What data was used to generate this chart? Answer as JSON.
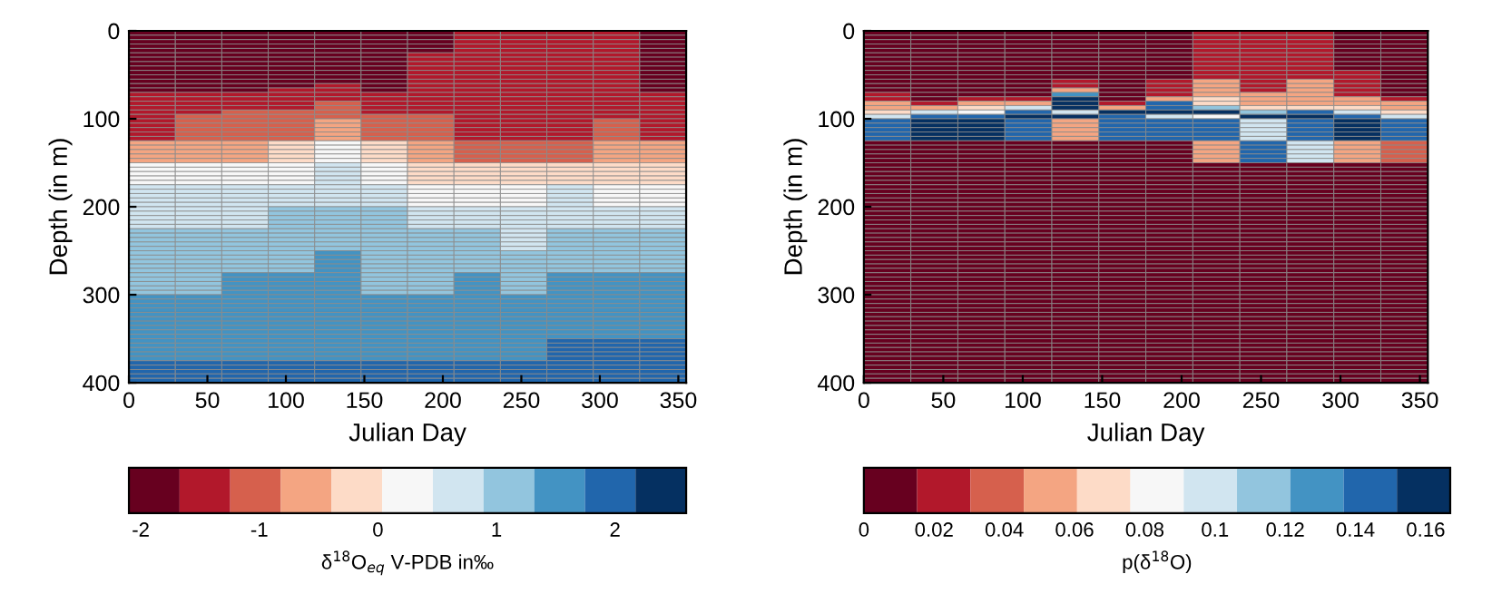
{
  "chart_data": [
    {
      "type": "heatmap",
      "xlabel": "Julian Day",
      "ylabel": "Depth (in m)",
      "clabel": "δ$^{18}$O$_{eq}$ V-PDB in‰",
      "xlim": [
        0,
        355
      ],
      "ylim": [
        400,
        0
      ],
      "xticks": [
        0,
        50,
        100,
        150,
        200,
        250,
        300,
        350
      ],
      "yticks": [
        0,
        100,
        200,
        300,
        400
      ],
      "clim": [
        -2.1,
        2.6
      ],
      "cticks": [
        -2,
        -1,
        0,
        1,
        2
      ],
      "colors": [
        "#67001f",
        "#b2182b",
        "#d6604d",
        "#f4a582",
        "#fddbc7",
        "#f7f7f7",
        "#d1e5f0",
        "#92c5de",
        "#4393c3",
        "#2166ac",
        "#053061"
      ],
      "cells": [
        [
          -1.89,
          -1.89,
          -1.89,
          -1.89,
          -1.89,
          -1.89,
          -1.89,
          -1.46,
          -1.46,
          -1.46,
          -1.46,
          -1.89
        ],
        [
          -1.89,
          -1.89,
          -1.89,
          -1.89,
          -1.89,
          -1.89,
          -1.89,
          -1.46,
          -1.46,
          -1.46,
          -1.46,
          -1.89
        ],
        [
          -1.89,
          -1.89,
          -1.89,
          -1.89,
          -1.89,
          -1.89,
          -1.89,
          -1.46,
          -1.46,
          -1.46,
          -1.46,
          -1.89
        ],
        [
          -1.89,
          -1.89,
          -1.89,
          -1.89,
          -1.89,
          -1.89,
          -1.89,
          -1.46,
          -1.46,
          -1.46,
          -1.46,
          -1.89
        ],
        [
          -1.89,
          -1.89,
          -1.89,
          -1.89,
          -1.89,
          -1.89,
          -1.89,
          -1.46,
          -1.46,
          -1.46,
          -1.46,
          -1.89
        ],
        [
          -1.89,
          -1.89,
          -1.89,
          -1.89,
          -1.89,
          -1.89,
          -1.46,
          -1.46,
          -1.46,
          -1.46,
          -1.46,
          -1.89
        ],
        [
          -1.89,
          -1.89,
          -1.89,
          -1.89,
          -1.89,
          -1.89,
          -1.46,
          -1.46,
          -1.46,
          -1.46,
          -1.46,
          -1.89
        ],
        [
          -1.89,
          -1.89,
          -1.89,
          -1.89,
          -1.89,
          -1.89,
          -1.46,
          -1.46,
          -1.46,
          -1.46,
          -1.46,
          -1.89
        ],
        [
          -1.89,
          -1.89,
          -1.89,
          -1.89,
          -1.89,
          -1.89,
          -1.46,
          -1.46,
          -1.46,
          -1.46,
          -1.46,
          -1.89
        ],
        [
          -1.89,
          -1.89,
          -1.89,
          -1.89,
          -1.89,
          -1.89,
          -1.46,
          -1.46,
          -1.46,
          -1.46,
          -1.46,
          -1.89
        ],
        [
          -1.89,
          -1.89,
          -1.89,
          -1.89,
          -1.89,
          -1.89,
          -1.46,
          -1.46,
          -1.46,
          -1.46,
          -1.46,
          -1.89
        ],
        [
          -1.89,
          -1.89,
          -1.89,
          -1.89,
          -1.89,
          -1.89,
          -1.46,
          -1.46,
          -1.46,
          -1.46,
          -1.46,
          -1.89
        ],
        [
          -1.89,
          -1.89,
          -1.89,
          -1.89,
          -1.46,
          -1.89,
          -1.46,
          -1.46,
          -1.46,
          -1.46,
          -1.46,
          -1.89
        ],
        [
          -1.89,
          -1.89,
          -1.89,
          -1.46,
          -1.46,
          -1.89,
          -1.46,
          -1.46,
          -1.46,
          -1.46,
          -1.46,
          -1.89
        ],
        [
          -1.46,
          -1.46,
          -1.46,
          -1.46,
          -1.46,
          -1.46,
          -1.46,
          -1.46,
          -1.46,
          -1.46,
          -1.46,
          -1.46
        ],
        [
          -1.46,
          -1.46,
          -1.46,
          -1.46,
          -1.46,
          -1.46,
          -1.46,
          -1.46,
          -1.46,
          -1.46,
          -1.46,
          -1.46
        ],
        [
          -1.46,
          -1.46,
          -1.46,
          -1.46,
          -1.03,
          -1.46,
          -1.46,
          -1.46,
          -1.46,
          -1.46,
          -1.46,
          -1.46
        ],
        [
          -1.46,
          -1.46,
          -1.46,
          -1.46,
          -1.03,
          -1.46,
          -1.46,
          -1.46,
          -1.46,
          -1.46,
          -1.46,
          -1.46
        ],
        [
          -1.46,
          -1.46,
          -1.03,
          -1.03,
          -1.03,
          -1.46,
          -1.46,
          -1.46,
          -1.46,
          -1.46,
          -1.46,
          -1.46
        ],
        [
          -1.46,
          -1.03,
          -1.03,
          -1.03,
          -1.03,
          -1.03,
          -1.03,
          -1.46,
          -1.46,
          -1.46,
          -1.46,
          -1.46
        ],
        [
          -1.46,
          -1.03,
          -1.03,
          -1.03,
          -0.6,
          -1.03,
          -1.03,
          -1.46,
          -1.46,
          -1.46,
          -1.03,
          -1.46
        ],
        [
          -1.46,
          -1.03,
          -1.03,
          -1.03,
          -0.6,
          -1.03,
          -1.03,
          -1.46,
          -1.46,
          -1.46,
          -1.03,
          -1.46
        ],
        [
          -1.46,
          -1.03,
          -1.03,
          -1.03,
          -0.6,
          -1.03,
          -1.03,
          -1.46,
          -1.46,
          -1.46,
          -1.03,
          -1.46
        ],
        [
          -1.46,
          -1.03,
          -1.03,
          -1.03,
          -0.6,
          -1.03,
          -1.03,
          -1.46,
          -1.46,
          -1.46,
          -1.03,
          -1.46
        ],
        [
          -1.46,
          -1.03,
          -1.03,
          -1.03,
          -0.6,
          -1.03,
          -1.03,
          -1.46,
          -1.46,
          -1.46,
          -1.03,
          -1.46
        ],
        [
          -0.6,
          -0.6,
          -0.6,
          -0.18,
          0.25,
          -0.18,
          -0.6,
          -1.03,
          -1.03,
          -1.03,
          -0.6,
          -0.6
        ],
        [
          -0.6,
          -0.6,
          -0.6,
          -0.18,
          0.25,
          -0.18,
          -0.6,
          -1.03,
          -1.03,
          -1.03,
          -0.6,
          -0.6
        ],
        [
          -0.6,
          -0.6,
          -0.6,
          -0.18,
          0.25,
          -0.18,
          -0.6,
          -1.03,
          -1.03,
          -1.03,
          -0.6,
          -0.6
        ],
        [
          -0.6,
          -0.6,
          -0.6,
          -0.18,
          0.25,
          -0.18,
          -0.6,
          -1.03,
          -1.03,
          -1.03,
          -0.6,
          -0.6
        ],
        [
          -0.6,
          -0.6,
          -0.6,
          -0.18,
          0.25,
          -0.18,
          -0.6,
          -1.03,
          -1.03,
          -1.03,
          -0.6,
          -0.6
        ],
        [
          0.25,
          0.25,
          0.25,
          0.25,
          0.68,
          0.25,
          -0.18,
          -0.18,
          -0.18,
          -0.18,
          -0.18,
          -0.18
        ],
        [
          0.25,
          0.25,
          0.25,
          0.25,
          0.68,
          0.25,
          -0.18,
          -0.18,
          -0.18,
          -0.18,
          -0.18,
          -0.18
        ],
        [
          0.25,
          0.25,
          0.25,
          0.25,
          0.68,
          0.25,
          -0.18,
          -0.18,
          -0.18,
          -0.18,
          -0.18,
          -0.18
        ],
        [
          0.25,
          0.25,
          0.25,
          0.25,
          0.68,
          0.25,
          -0.18,
          -0.18,
          -0.18,
          -0.18,
          -0.18,
          -0.18
        ],
        [
          0.25,
          0.25,
          0.25,
          0.25,
          0.68,
          0.25,
          -0.18,
          -0.18,
          -0.18,
          -0.18,
          -0.18,
          -0.18
        ],
        [
          0.68,
          0.68,
          0.68,
          0.68,
          0.68,
          0.68,
          0.25,
          0.25,
          0.25,
          0.68,
          0.25,
          0.25
        ],
        [
          0.68,
          0.68,
          0.68,
          0.68,
          0.68,
          0.68,
          0.25,
          0.25,
          0.25,
          0.68,
          0.25,
          0.25
        ],
        [
          0.68,
          0.68,
          0.68,
          0.68,
          0.68,
          0.68,
          0.25,
          0.25,
          0.25,
          0.68,
          0.25,
          0.25
        ],
        [
          0.68,
          0.68,
          0.68,
          0.68,
          0.68,
          0.68,
          0.25,
          0.25,
          0.25,
          0.68,
          0.25,
          0.25
        ],
        [
          0.68,
          0.68,
          0.68,
          0.68,
          0.68,
          0.68,
          0.25,
          0.25,
          0.25,
          0.68,
          0.25,
          0.25
        ],
        [
          0.68,
          0.68,
          0.68,
          1.1,
          1.1,
          1.1,
          0.68,
          0.68,
          0.68,
          0.68,
          0.68,
          0.68
        ],
        [
          0.68,
          0.68,
          0.68,
          1.1,
          1.1,
          1.1,
          0.68,
          0.68,
          0.68,
          0.68,
          0.68,
          0.68
        ],
        [
          0.68,
          0.68,
          0.68,
          1.1,
          1.1,
          1.1,
          0.68,
          0.68,
          0.68,
          0.68,
          0.68,
          0.68
        ],
        [
          0.68,
          0.68,
          0.68,
          1.1,
          1.1,
          1.1,
          0.68,
          0.68,
          0.68,
          0.68,
          0.68,
          0.68
        ],
        [
          0.68,
          0.68,
          0.68,
          1.1,
          1.1,
          1.1,
          0.68,
          0.68,
          0.68,
          0.68,
          0.68,
          0.68
        ],
        [
          1.1,
          1.1,
          1.1,
          1.1,
          1.1,
          1.1,
          1.1,
          1.1,
          0.68,
          1.1,
          1.1,
          1.1
        ],
        [
          1.1,
          1.1,
          1.1,
          1.1,
          1.1,
          1.1,
          1.1,
          1.1,
          0.68,
          1.1,
          1.1,
          1.1
        ],
        [
          1.1,
          1.1,
          1.1,
          1.1,
          1.1,
          1.1,
          1.1,
          1.1,
          0.68,
          1.1,
          1.1,
          1.1
        ],
        [
          1.1,
          1.1,
          1.1,
          1.1,
          1.1,
          1.1,
          1.1,
          1.1,
          0.68,
          1.1,
          1.1,
          1.1
        ],
        [
          1.1,
          1.1,
          1.1,
          1.1,
          1.1,
          1.1,
          1.1,
          1.1,
          0.68,
          1.1,
          1.1,
          1.1
        ],
        [
          1.1,
          1.1,
          1.1,
          1.1,
          1.53,
          1.1,
          1.1,
          1.1,
          1.1,
          1.1,
          1.1,
          1.1
        ],
        [
          1.1,
          1.1,
          1.1,
          1.1,
          1.53,
          1.1,
          1.1,
          1.1,
          1.1,
          1.1,
          1.1,
          1.1
        ],
        [
          1.1,
          1.1,
          1.1,
          1.1,
          1.53,
          1.1,
          1.1,
          1.1,
          1.1,
          1.1,
          1.1,
          1.1
        ],
        [
          1.1,
          1.1,
          1.1,
          1.1,
          1.53,
          1.1,
          1.1,
          1.1,
          1.1,
          1.1,
          1.1,
          1.1
        ],
        [
          1.1,
          1.1,
          1.1,
          1.1,
          1.53,
          1.1,
          1.1,
          1.1,
          1.1,
          1.1,
          1.1,
          1.1
        ],
        [
          1.1,
          1.1,
          1.53,
          1.53,
          1.53,
          1.1,
          1.1,
          1.53,
          1.1,
          1.53,
          1.53,
          1.53
        ],
        [
          1.1,
          1.1,
          1.53,
          1.53,
          1.53,
          1.1,
          1.1,
          1.53,
          1.1,
          1.53,
          1.53,
          1.53
        ],
        [
          1.1,
          1.1,
          1.53,
          1.53,
          1.53,
          1.1,
          1.1,
          1.53,
          1.1,
          1.53,
          1.53,
          1.53
        ],
        [
          1.1,
          1.1,
          1.53,
          1.53,
          1.53,
          1.1,
          1.1,
          1.53,
          1.1,
          1.53,
          1.53,
          1.53
        ],
        [
          1.1,
          1.1,
          1.53,
          1.53,
          1.53,
          1.1,
          1.1,
          1.53,
          1.1,
          1.53,
          1.53,
          1.53
        ],
        [
          1.53,
          1.53,
          1.53,
          1.53,
          1.53,
          1.53,
          1.53,
          1.53,
          1.53,
          1.53,
          1.53,
          1.53
        ],
        [
          1.53,
          1.53,
          1.53,
          1.53,
          1.53,
          1.53,
          1.53,
          1.53,
          1.53,
          1.53,
          1.53,
          1.53
        ],
        [
          1.53,
          1.53,
          1.53,
          1.53,
          1.53,
          1.53,
          1.53,
          1.53,
          1.53,
          1.53,
          1.53,
          1.53
        ],
        [
          1.53,
          1.53,
          1.53,
          1.53,
          1.53,
          1.53,
          1.53,
          1.53,
          1.53,
          1.53,
          1.53,
          1.53
        ],
        [
          1.53,
          1.53,
          1.53,
          1.53,
          1.53,
          1.53,
          1.53,
          1.53,
          1.53,
          1.53,
          1.53,
          1.53
        ],
        [
          1.53,
          1.53,
          1.53,
          1.53,
          1.53,
          1.53,
          1.53,
          1.53,
          1.53,
          1.53,
          1.53,
          1.53
        ],
        [
          1.53,
          1.53,
          1.53,
          1.53,
          1.53,
          1.53,
          1.53,
          1.53,
          1.53,
          1.53,
          1.53,
          1.53
        ],
        [
          1.53,
          1.53,
          1.53,
          1.53,
          1.53,
          1.53,
          1.53,
          1.53,
          1.53,
          1.53,
          1.53,
          1.53
        ],
        [
          1.53,
          1.53,
          1.53,
          1.53,
          1.53,
          1.53,
          1.53,
          1.53,
          1.53,
          1.53,
          1.53,
          1.53
        ],
        [
          1.53,
          1.53,
          1.53,
          1.53,
          1.53,
          1.53,
          1.53,
          1.53,
          1.53,
          1.53,
          1.53,
          1.53
        ],
        [
          1.53,
          1.53,
          1.53,
          1.53,
          1.53,
          1.53,
          1.53,
          1.53,
          1.53,
          1.96,
          1.96,
          1.96
        ],
        [
          1.53,
          1.53,
          1.53,
          1.53,
          1.53,
          1.53,
          1.53,
          1.53,
          1.53,
          1.96,
          1.96,
          1.96
        ],
        [
          1.53,
          1.53,
          1.53,
          1.53,
          1.53,
          1.53,
          1.53,
          1.53,
          1.53,
          1.96,
          1.96,
          1.96
        ],
        [
          1.53,
          1.53,
          1.53,
          1.53,
          1.53,
          1.53,
          1.53,
          1.53,
          1.53,
          1.96,
          1.96,
          1.96
        ],
        [
          1.53,
          1.53,
          1.53,
          1.53,
          1.53,
          1.53,
          1.53,
          1.53,
          1.53,
          1.96,
          1.96,
          1.96
        ],
        [
          1.96,
          1.96,
          1.96,
          1.96,
          1.96,
          1.96,
          1.96,
          1.96,
          1.96,
          1.96,
          1.96,
          1.96
        ],
        [
          1.96,
          1.96,
          1.96,
          1.96,
          1.96,
          1.96,
          1.96,
          1.96,
          1.96,
          1.96,
          1.96,
          1.96
        ],
        [
          1.96,
          1.96,
          1.96,
          1.96,
          1.96,
          1.96,
          1.96,
          1.96,
          1.96,
          1.96,
          1.96,
          1.96
        ],
        [
          1.96,
          1.96,
          1.96,
          1.96,
          1.96,
          1.96,
          1.96,
          1.96,
          1.96,
          1.96,
          1.96,
          1.96
        ],
        [
          1.96,
          1.96,
          1.96,
          1.96,
          1.96,
          1.96,
          1.96,
          1.96,
          1.96,
          1.96,
          1.96,
          1.96
        ]
      ]
    },
    {
      "type": "heatmap",
      "xlabel": "Julian Day",
      "ylabel": "Depth (in m)",
      "clabel": "p(δ$^{18}$O)",
      "xlim": [
        0,
        355
      ],
      "ylim": [
        400,
        0
      ],
      "xticks": [
        0,
        50,
        100,
        150,
        200,
        250,
        300,
        350
      ],
      "yticks": [
        0,
        100,
        200,
        300,
        400
      ],
      "clim": [
        0,
        0.167
      ],
      "cticks": [
        0,
        0.02,
        0.04,
        0.06,
        0.08,
        0.1,
        0.12,
        0.14,
        0.16
      ],
      "colors": [
        "#67001f",
        "#b2182b",
        "#d6604d",
        "#f4a582",
        "#fddbc7",
        "#f7f7f7",
        "#d1e5f0",
        "#92c5de",
        "#4393c3",
        "#2166ac",
        "#053061"
      ],
      "cells": [
        [
          0.008,
          0.008,
          0.008,
          0.008,
          0.008,
          0.008,
          0.008,
          0.023,
          0.023,
          0.023,
          0.008,
          0.008
        ],
        [
          0.008,
          0.008,
          0.008,
          0.008,
          0.008,
          0.008,
          0.008,
          0.023,
          0.023,
          0.023,
          0.008,
          0.008
        ],
        [
          0.008,
          0.008,
          0.008,
          0.008,
          0.008,
          0.008,
          0.008,
          0.023,
          0.023,
          0.023,
          0.008,
          0.008
        ],
        [
          0.008,
          0.008,
          0.008,
          0.008,
          0.008,
          0.008,
          0.008,
          0.023,
          0.023,
          0.023,
          0.008,
          0.008
        ],
        [
          0.008,
          0.008,
          0.008,
          0.008,
          0.008,
          0.008,
          0.008,
          0.023,
          0.023,
          0.023,
          0.008,
          0.008
        ],
        [
          0.008,
          0.008,
          0.008,
          0.008,
          0.008,
          0.008,
          0.008,
          0.023,
          0.023,
          0.023,
          0.008,
          0.008
        ],
        [
          0.008,
          0.008,
          0.008,
          0.008,
          0.008,
          0.008,
          0.008,
          0.023,
          0.023,
          0.023,
          0.008,
          0.008
        ],
        [
          0.008,
          0.008,
          0.008,
          0.008,
          0.008,
          0.008,
          0.008,
          0.023,
          0.023,
          0.023,
          0.008,
          0.008
        ],
        [
          0.008,
          0.008,
          0.008,
          0.008,
          0.008,
          0.008,
          0.008,
          0.023,
          0.023,
          0.023,
          0.008,
          0.008
        ],
        [
          0.008,
          0.008,
          0.008,
          0.008,
          0.008,
          0.008,
          0.008,
          0.023,
          0.023,
          0.023,
          0.023,
          0.008
        ],
        [
          0.008,
          0.008,
          0.008,
          0.008,
          0.008,
          0.008,
          0.008,
          0.023,
          0.023,
          0.023,
          0.023,
          0.008
        ],
        [
          0.008,
          0.008,
          0.008,
          0.008,
          0.023,
          0.008,
          0.023,
          0.053,
          0.023,
          0.053,
          0.023,
          0.008
        ],
        [
          0.008,
          0.008,
          0.008,
          0.008,
          0.023,
          0.008,
          0.023,
          0.053,
          0.023,
          0.053,
          0.023,
          0.008
        ],
        [
          0.008,
          0.008,
          0.008,
          0.008,
          0.053,
          0.008,
          0.023,
          0.053,
          0.023,
          0.053,
          0.023,
          0.008
        ],
        [
          0.023,
          0.008,
          0.008,
          0.008,
          0.129,
          0.008,
          0.023,
          0.053,
          0.053,
          0.053,
          0.023,
          0.008
        ],
        [
          0.023,
          0.008,
          0.023,
          0.023,
          0.159,
          0.008,
          0.053,
          0.068,
          0.053,
          0.053,
          0.053,
          0.023
        ],
        [
          0.053,
          0.023,
          0.053,
          0.053,
          0.159,
          0.023,
          0.144,
          0.068,
          0.053,
          0.053,
          0.053,
          0.053
        ],
        [
          0.053,
          0.053,
          0.068,
          0.099,
          0.159,
          0.053,
          0.144,
          0.114,
          0.068,
          0.068,
          0.068,
          0.053
        ],
        [
          0.068,
          0.099,
          0.083,
          0.144,
          0.099,
          0.159,
          0.159,
          0.159,
          0.114,
          0.144,
          0.099,
          0.068
        ],
        [
          0.099,
          0.144,
          0.144,
          0.159,
          0.159,
          0.144,
          0.099,
          0.083,
          0.159,
          0.159,
          0.144,
          0.099
        ],
        [
          0.144,
          0.159,
          0.159,
          0.144,
          0.053,
          0.144,
          0.144,
          0.144,
          0.099,
          0.144,
          0.159,
          0.144
        ],
        [
          0.144,
          0.159,
          0.159,
          0.144,
          0.053,
          0.144,
          0.144,
          0.144,
          0.099,
          0.144,
          0.159,
          0.144
        ],
        [
          0.144,
          0.159,
          0.159,
          0.144,
          0.053,
          0.144,
          0.144,
          0.144,
          0.099,
          0.144,
          0.159,
          0.144
        ],
        [
          0.144,
          0.159,
          0.159,
          0.144,
          0.053,
          0.144,
          0.144,
          0.144,
          0.099,
          0.144,
          0.159,
          0.144
        ],
        [
          0.144,
          0.159,
          0.159,
          0.144,
          0.053,
          0.144,
          0.144,
          0.144,
          0.099,
          0.144,
          0.159,
          0.144
        ],
        [
          0.008,
          0.008,
          0.008,
          0.008,
          0.008,
          0.008,
          0.008,
          0.053,
          0.144,
          0.099,
          0.053,
          0.038
        ],
        [
          0.008,
          0.008,
          0.008,
          0.008,
          0.008,
          0.008,
          0.008,
          0.053,
          0.144,
          0.099,
          0.053,
          0.038
        ],
        [
          0.008,
          0.008,
          0.008,
          0.008,
          0.008,
          0.008,
          0.008,
          0.053,
          0.144,
          0.099,
          0.053,
          0.038
        ],
        [
          0.008,
          0.008,
          0.008,
          0.008,
          0.008,
          0.008,
          0.008,
          0.053,
          0.144,
          0.099,
          0.053,
          0.038
        ],
        [
          0.008,
          0.008,
          0.008,
          0.008,
          0.008,
          0.008,
          0.008,
          0.053,
          0.144,
          0.099,
          0.053,
          0.038
        ],
        [
          0.008,
          0.008,
          0.008,
          0.008,
          0.008,
          0.008,
          0.008,
          0.008,
          0.008,
          0.008,
          0.008,
          0.008
        ],
        [
          0.008,
          0.008,
          0.008,
          0.008,
          0.008,
          0.008,
          0.008,
          0.008,
          0.008,
          0.008,
          0.008,
          0.008
        ],
        [
          0.008,
          0.008,
          0.008,
          0.008,
          0.008,
          0.008,
          0.008,
          0.008,
          0.008,
          0.008,
          0.008,
          0.008
        ],
        [
          0.008,
          0.008,
          0.008,
          0.008,
          0.008,
          0.008,
          0.008,
          0.008,
          0.008,
          0.008,
          0.008,
          0.008
        ],
        [
          0.008,
          0.008,
          0.008,
          0.008,
          0.008,
          0.008,
          0.008,
          0.008,
          0.008,
          0.008,
          0.008,
          0.008
        ],
        [
          0.008,
          0.008,
          0.008,
          0.008,
          0.008,
          0.008,
          0.008,
          0.008,
          0.008,
          0.008,
          0.008,
          0.008
        ],
        [
          0.008,
          0.008,
          0.008,
          0.008,
          0.008,
          0.008,
          0.008,
          0.008,
          0.008,
          0.008,
          0.008,
          0.008
        ],
        [
          0.008,
          0.008,
          0.008,
          0.008,
          0.008,
          0.008,
          0.008,
          0.008,
          0.008,
          0.008,
          0.008,
          0.008
        ],
        [
          0.008,
          0.008,
          0.008,
          0.008,
          0.008,
          0.008,
          0.008,
          0.008,
          0.008,
          0.008,
          0.008,
          0.008
        ],
        [
          0.008,
          0.008,
          0.008,
          0.008,
          0.008,
          0.008,
          0.008,
          0.008,
          0.008,
          0.008,
          0.008,
          0.008
        ],
        [
          0.008,
          0.008,
          0.008,
          0.008,
          0.008,
          0.008,
          0.008,
          0.008,
          0.008,
          0.008,
          0.008,
          0.008
        ],
        [
          0.008,
          0.008,
          0.008,
          0.008,
          0.008,
          0.008,
          0.008,
          0.008,
          0.008,
          0.008,
          0.008,
          0.008
        ],
        [
          0.008,
          0.008,
          0.008,
          0.008,
          0.008,
          0.008,
          0.008,
          0.008,
          0.008,
          0.008,
          0.008,
          0.008
        ],
        [
          0.008,
          0.008,
          0.008,
          0.008,
          0.008,
          0.008,
          0.008,
          0.008,
          0.008,
          0.008,
          0.008,
          0.008
        ],
        [
          0.008,
          0.008,
          0.008,
          0.008,
          0.008,
          0.008,
          0.008,
          0.008,
          0.008,
          0.008,
          0.008,
          0.008
        ],
        [
          0.008,
          0.008,
          0.008,
          0.008,
          0.008,
          0.008,
          0.008,
          0.008,
          0.008,
          0.008,
          0.008,
          0.008
        ],
        [
          0.008,
          0.008,
          0.008,
          0.008,
          0.008,
          0.008,
          0.008,
          0.008,
          0.008,
          0.008,
          0.008,
          0.008
        ],
        [
          0.008,
          0.008,
          0.008,
          0.008,
          0.008,
          0.008,
          0.008,
          0.008,
          0.008,
          0.008,
          0.008,
          0.008
        ],
        [
          0.008,
          0.008,
          0.008,
          0.008,
          0.008,
          0.008,
          0.008,
          0.008,
          0.008,
          0.008,
          0.008,
          0.008
        ],
        [
          0.008,
          0.008,
          0.008,
          0.008,
          0.008,
          0.008,
          0.008,
          0.008,
          0.008,
          0.008,
          0.008,
          0.008
        ],
        [
          0.008,
          0.008,
          0.008,
          0.008,
          0.008,
          0.008,
          0.008,
          0.008,
          0.008,
          0.008,
          0.008,
          0.008
        ],
        [
          0.008,
          0.008,
          0.008,
          0.008,
          0.008,
          0.008,
          0.008,
          0.008,
          0.008,
          0.008,
          0.008,
          0.008
        ],
        [
          0.008,
          0.008,
          0.008,
          0.008,
          0.008,
          0.008,
          0.008,
          0.008,
          0.008,
          0.008,
          0.008,
          0.008
        ],
        [
          0.008,
          0.008,
          0.008,
          0.008,
          0.008,
          0.008,
          0.008,
          0.008,
          0.008,
          0.008,
          0.008,
          0.008
        ],
        [
          0.008,
          0.008,
          0.008,
          0.008,
          0.008,
          0.008,
          0.008,
          0.008,
          0.008,
          0.008,
          0.008,
          0.008
        ],
        [
          0.008,
          0.008,
          0.008,
          0.008,
          0.008,
          0.008,
          0.008,
          0.008,
          0.008,
          0.008,
          0.008,
          0.008
        ],
        [
          0.008,
          0.008,
          0.008,
          0.008,
          0.008,
          0.008,
          0.008,
          0.008,
          0.008,
          0.008,
          0.008,
          0.008
        ],
        [
          0.008,
          0.008,
          0.008,
          0.008,
          0.008,
          0.008,
          0.008,
          0.008,
          0.008,
          0.008,
          0.008,
          0.008
        ],
        [
          0.008,
          0.008,
          0.008,
          0.008,
          0.008,
          0.008,
          0.008,
          0.008,
          0.008,
          0.008,
          0.008,
          0.008
        ],
        [
          0.008,
          0.008,
          0.008,
          0.008,
          0.008,
          0.008,
          0.008,
          0.008,
          0.008,
          0.008,
          0.008,
          0.008
        ],
        [
          0.008,
          0.008,
          0.008,
          0.008,
          0.008,
          0.008,
          0.008,
          0.008,
          0.008,
          0.008,
          0.008,
          0.008
        ],
        [
          0.008,
          0.008,
          0.008,
          0.008,
          0.008,
          0.008,
          0.008,
          0.008,
          0.008,
          0.008,
          0.008,
          0.008
        ],
        [
          0.008,
          0.008,
          0.008,
          0.008,
          0.008,
          0.008,
          0.008,
          0.008,
          0.008,
          0.008,
          0.008,
          0.008
        ],
        [
          0.008,
          0.008,
          0.008,
          0.008,
          0.008,
          0.008,
          0.008,
          0.008,
          0.008,
          0.008,
          0.008,
          0.008
        ],
        [
          0.008,
          0.008,
          0.008,
          0.008,
          0.008,
          0.008,
          0.008,
          0.008,
          0.008,
          0.008,
          0.008,
          0.008
        ],
        [
          0.008,
          0.008,
          0.008,
          0.008,
          0.008,
          0.008,
          0.008,
          0.008,
          0.008,
          0.008,
          0.008,
          0.008
        ],
        [
          0.008,
          0.008,
          0.008,
          0.008,
          0.008,
          0.008,
          0.008,
          0.008,
          0.008,
          0.008,
          0.008,
          0.008
        ],
        [
          0.008,
          0.008,
          0.008,
          0.008,
          0.008,
          0.008,
          0.008,
          0.008,
          0.008,
          0.008,
          0.008,
          0.008
        ],
        [
          0.008,
          0.008,
          0.008,
          0.008,
          0.008,
          0.008,
          0.008,
          0.008,
          0.008,
          0.008,
          0.008,
          0.008
        ],
        [
          0.008,
          0.008,
          0.008,
          0.008,
          0.008,
          0.008,
          0.008,
          0.008,
          0.008,
          0.008,
          0.008,
          0.008
        ],
        [
          0.008,
          0.008,
          0.008,
          0.008,
          0.008,
          0.008,
          0.008,
          0.008,
          0.008,
          0.008,
          0.008,
          0.008
        ],
        [
          0.008,
          0.008,
          0.008,
          0.008,
          0.008,
          0.008,
          0.008,
          0.008,
          0.008,
          0.008,
          0.008,
          0.008
        ],
        [
          0.008,
          0.008,
          0.008,
          0.008,
          0.008,
          0.008,
          0.008,
          0.008,
          0.008,
          0.008,
          0.008,
          0.008
        ],
        [
          0.008,
          0.008,
          0.008,
          0.008,
          0.008,
          0.008,
          0.008,
          0.008,
          0.008,
          0.008,
          0.008,
          0.008
        ],
        [
          0.008,
          0.008,
          0.008,
          0.008,
          0.008,
          0.008,
          0.008,
          0.008,
          0.008,
          0.008,
          0.008,
          0.008
        ],
        [
          0.008,
          0.008,
          0.008,
          0.008,
          0.008,
          0.008,
          0.008,
          0.008,
          0.008,
          0.008,
          0.008,
          0.008
        ],
        [
          0.008,
          0.008,
          0.008,
          0.008,
          0.008,
          0.008,
          0.008,
          0.008,
          0.008,
          0.008,
          0.008,
          0.008
        ],
        [
          0.008,
          0.008,
          0.008,
          0.008,
          0.008,
          0.008,
          0.008,
          0.008,
          0.008,
          0.008,
          0.008,
          0.008
        ],
        [
          0.008,
          0.008,
          0.008,
          0.008,
          0.008,
          0.008,
          0.008,
          0.008,
          0.008,
          0.008,
          0.008,
          0.008
        ],
        [
          0.008,
          0.008,
          0.008,
          0.008,
          0.008,
          0.008,
          0.008,
          0.008,
          0.008,
          0.008,
          0.008,
          0.008
        ]
      ]
    }
  ]
}
